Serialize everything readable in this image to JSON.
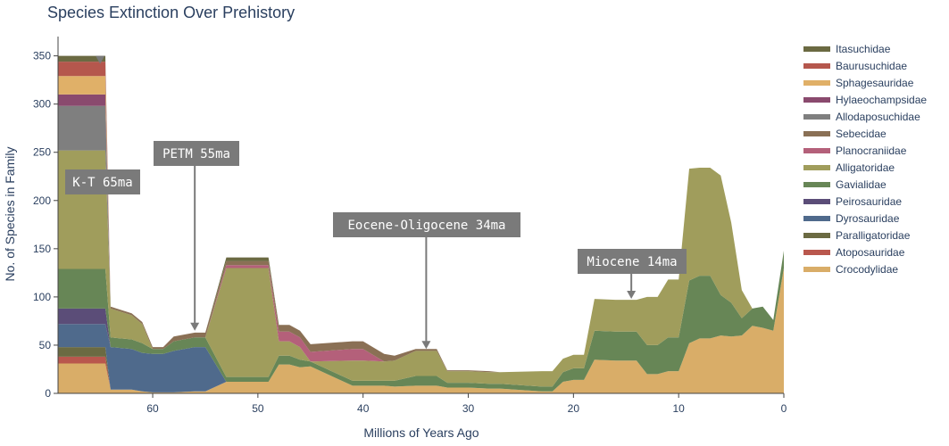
{
  "chart_data": {
    "type": "area",
    "title": "Species Extinction Over Prehistory",
    "xlabel": "Millions of Years Ago",
    "ylabel": "No. of Species in Family",
    "xlim": [
      69,
      0
    ],
    "ylim": [
      0,
      370
    ],
    "x_ticks": [
      60,
      50,
      40,
      30,
      20,
      10,
      0
    ],
    "y_ticks": [
      0,
      50,
      100,
      150,
      200,
      250,
      300,
      350
    ],
    "legend_position": "right",
    "x": [
      69,
      64.5,
      64,
      62,
      61,
      60,
      59,
      58,
      56,
      55,
      53,
      49,
      48,
      47,
      46,
      45,
      41,
      40,
      38,
      37,
      35,
      33,
      32,
      30,
      28,
      27,
      23,
      22,
      21,
      20,
      19,
      18,
      16,
      15,
      14,
      13,
      12,
      11,
      10,
      9,
      8,
      7,
      6,
      5,
      4,
      3,
      2,
      1,
      0
    ],
    "series": [
      {
        "name": "Crocodylidae",
        "color": "#d9ad68",
        "values": [
          31,
          31,
          4,
          4,
          2,
          1,
          1,
          1,
          2,
          2,
          12,
          12,
          30,
          30,
          27,
          28,
          8,
          8,
          8,
          7,
          8,
          8,
          6,
          6,
          5,
          5,
          2,
          2,
          12,
          14,
          14,
          35,
          34,
          34,
          34,
          20,
          20,
          23,
          23,
          52,
          57,
          57,
          60,
          59,
          60,
          70,
          68,
          65,
          130
        ]
      },
      {
        "name": "Atoposauridae",
        "color": "#b9574d",
        "values": [
          7,
          7,
          0,
          0,
          0,
          0,
          0,
          0,
          0,
          0,
          0,
          0,
          0,
          0,
          0,
          0,
          0,
          0,
          0,
          0,
          0,
          0,
          0,
          0,
          0,
          0,
          0,
          0,
          0,
          0,
          0,
          0,
          0,
          0,
          0,
          0,
          0,
          0,
          0,
          0,
          0,
          0,
          0,
          0,
          0,
          0,
          0,
          0,
          0
        ]
      },
      {
        "name": "Paralligatoridae",
        "color": "#6b6a42",
        "values": [
          10,
          10,
          0,
          0,
          0,
          0,
          0,
          0,
          0,
          0,
          0,
          0,
          0,
          0,
          0,
          0,
          0,
          0,
          0,
          0,
          0,
          0,
          0,
          0,
          0,
          0,
          0,
          0,
          0,
          0,
          0,
          0,
          0,
          0,
          0,
          0,
          0,
          0,
          0,
          0,
          0,
          0,
          0,
          0,
          0,
          0,
          0,
          0,
          0
        ]
      },
      {
        "name": "Dyrosauridae",
        "color": "#4f6a8c",
        "values": [
          24,
          24,
          44,
          42,
          40,
          40,
          40,
          43,
          46,
          46,
          0,
          0,
          0,
          0,
          0,
          0,
          0,
          0,
          0,
          0,
          0,
          0,
          0,
          0,
          0,
          0,
          0,
          0,
          0,
          0,
          0,
          0,
          0,
          0,
          0,
          0,
          0,
          0,
          0,
          0,
          0,
          0,
          0,
          0,
          0,
          0,
          0,
          0,
          0
        ]
      },
      {
        "name": "Peirosauridae",
        "color": "#5b4d78",
        "values": [
          16,
          16,
          0,
          0,
          0,
          0,
          0,
          0,
          0,
          0,
          0,
          0,
          0,
          0,
          0,
          0,
          0,
          0,
          0,
          0,
          0,
          0,
          0,
          0,
          0,
          0,
          0,
          0,
          0,
          0,
          0,
          0,
          0,
          0,
          0,
          0,
          0,
          0,
          0,
          0,
          0,
          0,
          0,
          0,
          0,
          0,
          0,
          0,
          0
        ]
      },
      {
        "name": "Gavialidae",
        "color": "#678656",
        "values": [
          41,
          41,
          10,
          10,
          10,
          5,
          5,
          10,
          10,
          10,
          5,
          5,
          9,
          9,
          8,
          5,
          5,
          5,
          5,
          6,
          10,
          10,
          5,
          5,
          5,
          5,
          5,
          5,
          10,
          12,
          12,
          30,
          30,
          30,
          30,
          30,
          30,
          35,
          35,
          65,
          65,
          65,
          42,
          35,
          18,
          18,
          22,
          11,
          18
        ]
      },
      {
        "name": "Alligatoridae",
        "color": "#a09d5c",
        "values": [
          123,
          123,
          30,
          25,
          20,
          0,
          0,
          0,
          0,
          0,
          113,
          113,
          15,
          15,
          13,
          0,
          21,
          21,
          20,
          21,
          26,
          26,
          12,
          12,
          12,
          12,
          16,
          16,
          14,
          14,
          14,
          33,
          33,
          33,
          33,
          50,
          50,
          60,
          60,
          116,
          112,
          112,
          124,
          83,
          29,
          0,
          0,
          0,
          0
        ]
      },
      {
        "name": "Planocraniidae",
        "color": "#b4607a",
        "values": [
          0,
          0,
          0,
          0,
          0,
          0,
          0,
          0,
          0,
          0,
          3,
          3,
          10,
          10,
          10,
          10,
          12,
          12,
          0,
          0,
          0,
          0,
          0,
          0,
          0,
          0,
          0,
          0,
          0,
          0,
          0,
          0,
          0,
          0,
          0,
          0,
          0,
          0,
          0,
          0,
          0,
          0,
          0,
          0,
          0,
          0,
          0,
          0,
          0
        ]
      },
      {
        "name": "Sebecidae",
        "color": "#8a7055",
        "values": [
          0,
          0,
          2,
          2,
          2,
          2,
          2,
          5,
          5,
          5,
          4,
          4,
          7,
          7,
          7,
          8,
          8,
          8,
          8,
          5,
          2,
          2,
          1,
          1,
          1,
          0,
          0,
          0,
          0,
          0,
          0,
          0,
          0,
          0,
          0,
          0,
          0,
          0,
          0,
          0,
          0,
          0,
          0,
          0,
          0,
          0,
          0,
          0,
          0
        ]
      },
      {
        "name": "Allodaposuchidae",
        "color": "#7f7f7f",
        "values": [
          46,
          46,
          0,
          0,
          0,
          0,
          0,
          0,
          0,
          0,
          0,
          0,
          0,
          0,
          0,
          0,
          0,
          0,
          0,
          0,
          0,
          0,
          0,
          0,
          0,
          0,
          0,
          0,
          0,
          0,
          0,
          0,
          0,
          0,
          0,
          0,
          0,
          0,
          0,
          0,
          0,
          0,
          0,
          0,
          0,
          0,
          0,
          0,
          0
        ]
      },
      {
        "name": "Hylaeochampsidae",
        "color": "#8a4a6e",
        "values": [
          12,
          12,
          0,
          0,
          0,
          0,
          0,
          0,
          0,
          0,
          0,
          0,
          0,
          0,
          0,
          0,
          0,
          0,
          0,
          0,
          0,
          0,
          0,
          0,
          0,
          0,
          0,
          0,
          0,
          0,
          0,
          0,
          0,
          0,
          0,
          0,
          0,
          0,
          0,
          0,
          0,
          0,
          0,
          0,
          0,
          0,
          0,
          0,
          0
        ]
      },
      {
        "name": "Sphagesauridae",
        "color": "#e0b068",
        "values": [
          19,
          19,
          0,
          0,
          0,
          0,
          0,
          0,
          0,
          0,
          0,
          0,
          0,
          0,
          0,
          0,
          0,
          0,
          0,
          0,
          0,
          0,
          0,
          0,
          0,
          0,
          0,
          0,
          0,
          0,
          0,
          0,
          0,
          0,
          0,
          0,
          0,
          0,
          0,
          0,
          0,
          0,
          0,
          0,
          0,
          0,
          0,
          0,
          0
        ]
      },
      {
        "name": "Baurusuchidae",
        "color": "#b5574d",
        "values": [
          15,
          15,
          0,
          0,
          0,
          0,
          0,
          0,
          0,
          0,
          0,
          0,
          0,
          0,
          0,
          0,
          0,
          0,
          0,
          0,
          0,
          0,
          0,
          0,
          0,
          0,
          0,
          0,
          0,
          0,
          0,
          0,
          0,
          0,
          0,
          0,
          0,
          0,
          0,
          0,
          0,
          0,
          0,
          0,
          0,
          0,
          0,
          0,
          0
        ]
      },
      {
        "name": "Itasuchidae",
        "color": "#6b6a42",
        "values": [
          6,
          6,
          0,
          0,
          0,
          0,
          0,
          0,
          0,
          0,
          4,
          4,
          0,
          0,
          0,
          0,
          0,
          0,
          0,
          0,
          0,
          0,
          0,
          0,
          0,
          0,
          0,
          0,
          0,
          0,
          0,
          0,
          0,
          0,
          0,
          0,
          0,
          0,
          0,
          0,
          0,
          0,
          0,
          0,
          0,
          0,
          0,
          0,
          0
        ]
      }
    ],
    "annotations": [
      {
        "text": "K-T 65ma",
        "x": 65,
        "y": 350
      },
      {
        "text": "PETM 55ma",
        "x": 56,
        "y": 65
      },
      {
        "text": "Eocene-Oligocene 34ma",
        "x": 34,
        "y": 46
      },
      {
        "text": "Miocene 14ma",
        "x": 14.5,
        "y": 98
      }
    ]
  }
}
